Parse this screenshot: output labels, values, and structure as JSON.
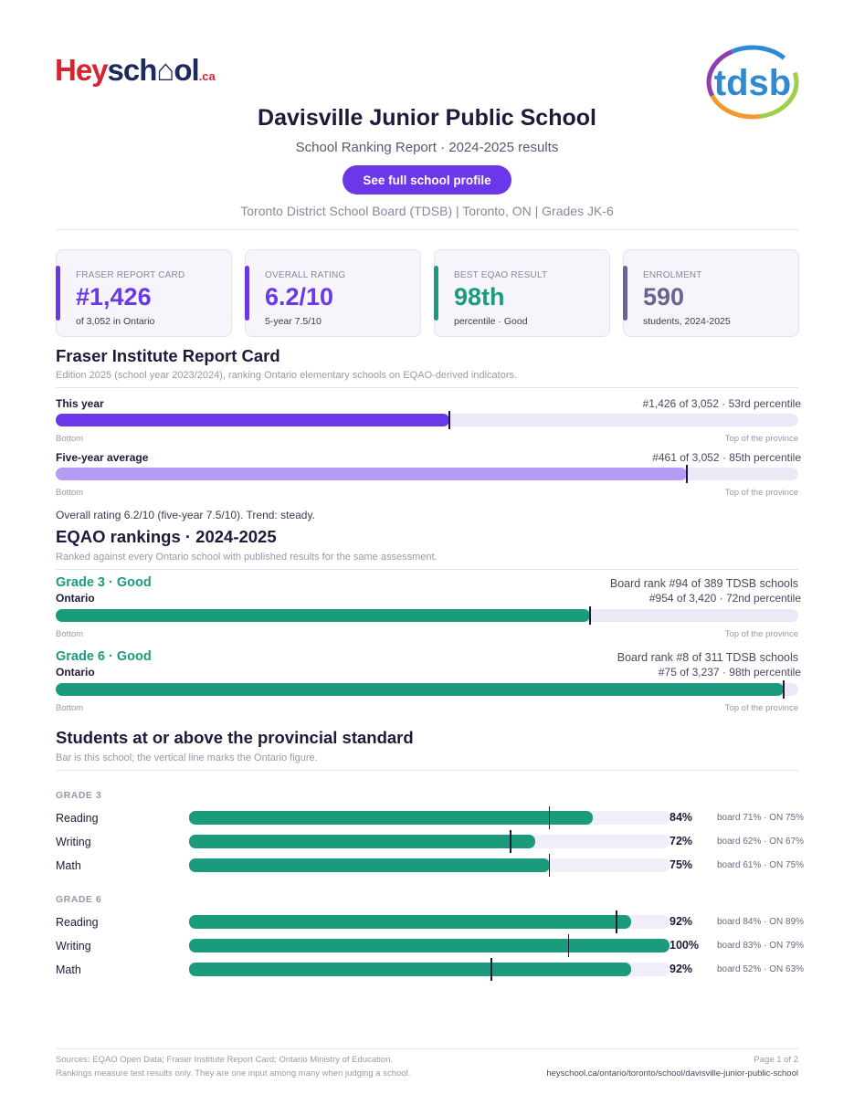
{
  "logos": {
    "heyschool_a": "Hey",
    "heyschool_b": "sch",
    "heyschool_c": "ol",
    "heyschool_ca": ".ca",
    "tdsb": "tdsb"
  },
  "header": {
    "title": "Davisville Junior Public School",
    "subtitle": "School Ranking Report  ·  2024-2025 results",
    "profile_button": "See full school profile",
    "meta": "Toronto District School Board (TDSB)  |  Toronto, ON  |  Grades JK-6"
  },
  "cards": [
    {
      "label": "FRASER REPORT CARD",
      "value": "#1,426",
      "sub": "of 3,052 in Ontario",
      "color": "#6a38e8"
    },
    {
      "label": "OVERALL RATING",
      "value": "6.2/10",
      "sub": "5-year 7.5/10",
      "color": "#6a38e8"
    },
    {
      "label": "BEST EQAO RESULT",
      "value": "98th",
      "sub": "percentile  ·  Good",
      "color": "#1a9b7c"
    },
    {
      "label": "ENROLMENT",
      "value": "590",
      "sub": "students, 2024-2025",
      "color": "#6a6492"
    }
  ],
  "fraser": {
    "title": "Fraser Institute Report Card",
    "note": "Edition 2025 (school year 2023/2024), ranking Ontario elementary schools on EQAO-derived indicators.",
    "rows": [
      {
        "label": "This year",
        "right": "#1,426 of 3,052  ·  53rd percentile",
        "percentile": 53,
        "color": "#6a38e8"
      },
      {
        "label": "Five-year average",
        "right": "#461 of 3,052  ·  85th percentile",
        "percentile": 85,
        "color": "#b69bf5"
      }
    ],
    "bottom": "Bottom",
    "top": "Top of the province",
    "summary": "Overall rating 6.2/10 (five-year 7.5/10). Trend: steady."
  },
  "eqao": {
    "title": "EQAO rankings  ·  2024-2025",
    "note": "Ranked against every Ontario school with published results for the same assessment.",
    "grades": [
      {
        "title": "Grade 3  ·  Good",
        "board_rank": "Board rank #94 of 389 TDSB schools",
        "scope": "Ontario",
        "right": "#954 of 3,420  ·  72nd percentile",
        "percentile": 72
      },
      {
        "title": "Grade 6  ·  Good",
        "board_rank": "Board rank #8 of 311 TDSB schools",
        "scope": "Ontario",
        "right": "#75 of 3,237  ·  98th percentile",
        "percentile": 98
      }
    ],
    "bottom": "Bottom",
    "top": "Top of the province"
  },
  "standard": {
    "title": "Students at or above the provincial standard",
    "note": "Bar is this school; the vertical line marks the Ontario figure.",
    "groups": [
      {
        "label": "GRADE 3",
        "rows": [
          {
            "subject": "Reading",
            "pct": 84,
            "pct_label": "84%",
            "ontario": 75,
            "compare": "board 71%  ·  ON 75%"
          },
          {
            "subject": "Writing",
            "pct": 72,
            "pct_label": "72%",
            "ontario": 67,
            "compare": "board 62%  ·  ON 67%"
          },
          {
            "subject": "Math",
            "pct": 75,
            "pct_label": "75%",
            "ontario": 75,
            "compare": "board 61%  ·  ON 75%"
          }
        ]
      },
      {
        "label": "GRADE 6",
        "rows": [
          {
            "subject": "Reading",
            "pct": 92,
            "pct_label": "92%",
            "ontario": 89,
            "compare": "board 84%  ·  ON 89%"
          },
          {
            "subject": "Writing",
            "pct": 100,
            "pct_label": "100%",
            "ontario": 79,
            "compare": "board 83%  ·  ON 79%"
          },
          {
            "subject": "Math",
            "pct": 92,
            "pct_label": "92%",
            "ontario": 63,
            "compare": "board 52%  ·  ON 63%"
          }
        ]
      }
    ]
  },
  "footer": {
    "sources": "Sources: EQAO Open Data; Fraser Institute Report Card; Ontario Ministry of Education.",
    "disclaimer": "Rankings measure test results only. They are one input among many when judging a school.",
    "page": "Page 1 of 2",
    "url": "heyschool.ca/ontario/toronto/school/davisville-junior-public-school"
  }
}
